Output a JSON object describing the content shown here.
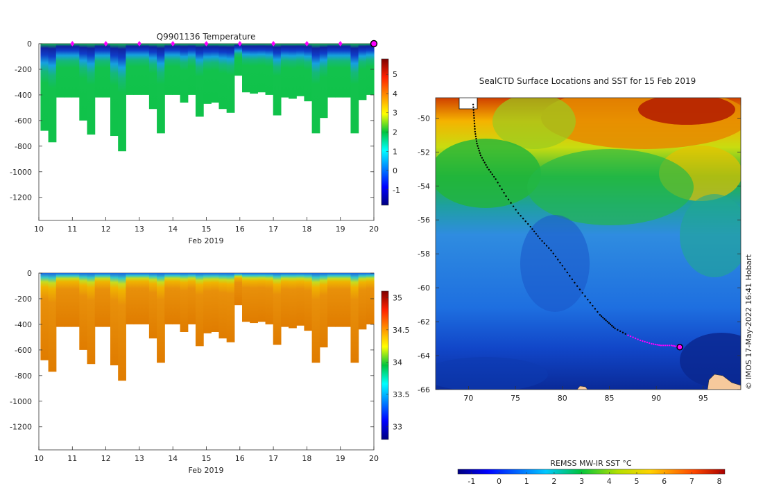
{
  "chart_data": [
    {
      "type": "heatmap",
      "title": "Q9901136  Temperature",
      "xlabel": "Feb 2019",
      "ylabel": "",
      "x_ticks": [
        "10",
        "11",
        "12",
        "13",
        "14",
        "15",
        "16",
        "17",
        "18",
        "19",
        "20"
      ],
      "xlim": [
        10,
        20
      ],
      "y_ticks": [
        "0",
        "-200",
        "-400",
        "-600",
        "-800",
        "-1000",
        "-1200"
      ],
      "ylim": [
        -1380,
        0
      ],
      "colorbar": {
        "ticks": [
          "5",
          "4",
          "3",
          "2",
          "1",
          "0",
          "-1"
        ],
        "range": [
          -1.8,
          5.8
        ]
      },
      "profile_depths_m": [
        680,
        770,
        420,
        420,
        420,
        600,
        710,
        420,
        420,
        720,
        840,
        400,
        400,
        400,
        510,
        700,
        400,
        400,
        460,
        400,
        570,
        470,
        460,
        510,
        540,
        250,
        380,
        390,
        380,
        400,
        560,
        420,
        430,
        410,
        450,
        700,
        580,
        420,
        420,
        420,
        700,
        440,
        400
      ],
      "surface_markers_day": [
        11,
        12,
        13,
        14,
        15,
        16,
        17,
        18,
        19
      ],
      "current_position_day": 20,
      "colors": {
        "marker": "#ff00ff",
        "current": "#ff00ff"
      }
    },
    {
      "type": "heatmap",
      "title": "",
      "xlabel": "Feb 2019",
      "ylabel": "",
      "x_ticks": [
        "10",
        "11",
        "12",
        "13",
        "14",
        "15",
        "16",
        "17",
        "18",
        "19",
        "20"
      ],
      "xlim": [
        10,
        20
      ],
      "y_ticks": [
        "0",
        "-200",
        "-400",
        "-600",
        "-800",
        "-1000",
        "-1200"
      ],
      "ylim": [
        -1380,
        0
      ],
      "colorbar": {
        "ticks": [
          "35",
          "34.5",
          "34",
          "33.5",
          "33"
        ],
        "range": [
          32.8,
          35.1
        ]
      },
      "profile_depths_m": [
        680,
        770,
        420,
        420,
        420,
        600,
        710,
        420,
        420,
        720,
        840,
        400,
        400,
        400,
        510,
        700,
        400,
        400,
        460,
        400,
        570,
        470,
        460,
        510,
        540,
        250,
        380,
        390,
        380,
        400,
        560,
        420,
        430,
        410,
        450,
        700,
        580,
        420,
        420,
        420,
        700,
        440,
        400
      ]
    },
    {
      "type": "heatmap",
      "title": "SealCTD Surface Locations and SST for 15 Feb 2019",
      "xlabel": "",
      "ylabel": "",
      "x_ticks": [
        "70",
        "75",
        "80",
        "85",
        "90",
        "95"
      ],
      "xlim": [
        66.5,
        99
      ],
      "y_ticks": [
        "-50",
        "-52",
        "-54",
        "-56",
        "-58",
        "-60",
        "-62",
        "-64",
        "-66"
      ],
      "ylim": [
        -66,
        -48.8
      ],
      "colorbar": {
        "label": "REMSS MW-IR SST °C",
        "ticks": [
          "-1",
          "0",
          "1",
          "2",
          "3",
          "4",
          "5",
          "6",
          "7",
          "8"
        ],
        "range": [
          -1.5,
          8.2
        ]
      },
      "track": {
        "lon": [
          70.5,
          70.6,
          70.7,
          70.9,
          71.3,
          72.0,
          72.9,
          74.0,
          75.3,
          76.6,
          77.6,
          78.8,
          80.0,
          81.3,
          82.7,
          84.0,
          84.8,
          85.6,
          87.0,
          88.3,
          89.5,
          90.5,
          91.6,
          92.5
        ],
        "lat": [
          -49.2,
          -50.0,
          -50.8,
          -51.5,
          -52.2,
          -52.9,
          -53.6,
          -54.6,
          -55.6,
          -56.4,
          -57.1,
          -57.8,
          -58.7,
          -59.7,
          -60.7,
          -61.6,
          -62.0,
          -62.4,
          -62.8,
          -63.1,
          -63.3,
          -63.4,
          -63.4,
          -63.5
        ],
        "last_position_index": 23
      },
      "credit": "© IMOS 17-May-2022 16:41 Hobart",
      "colors": {
        "land": "#f7c99c",
        "track": "#000000",
        "recent": "#ff00ff"
      }
    }
  ]
}
